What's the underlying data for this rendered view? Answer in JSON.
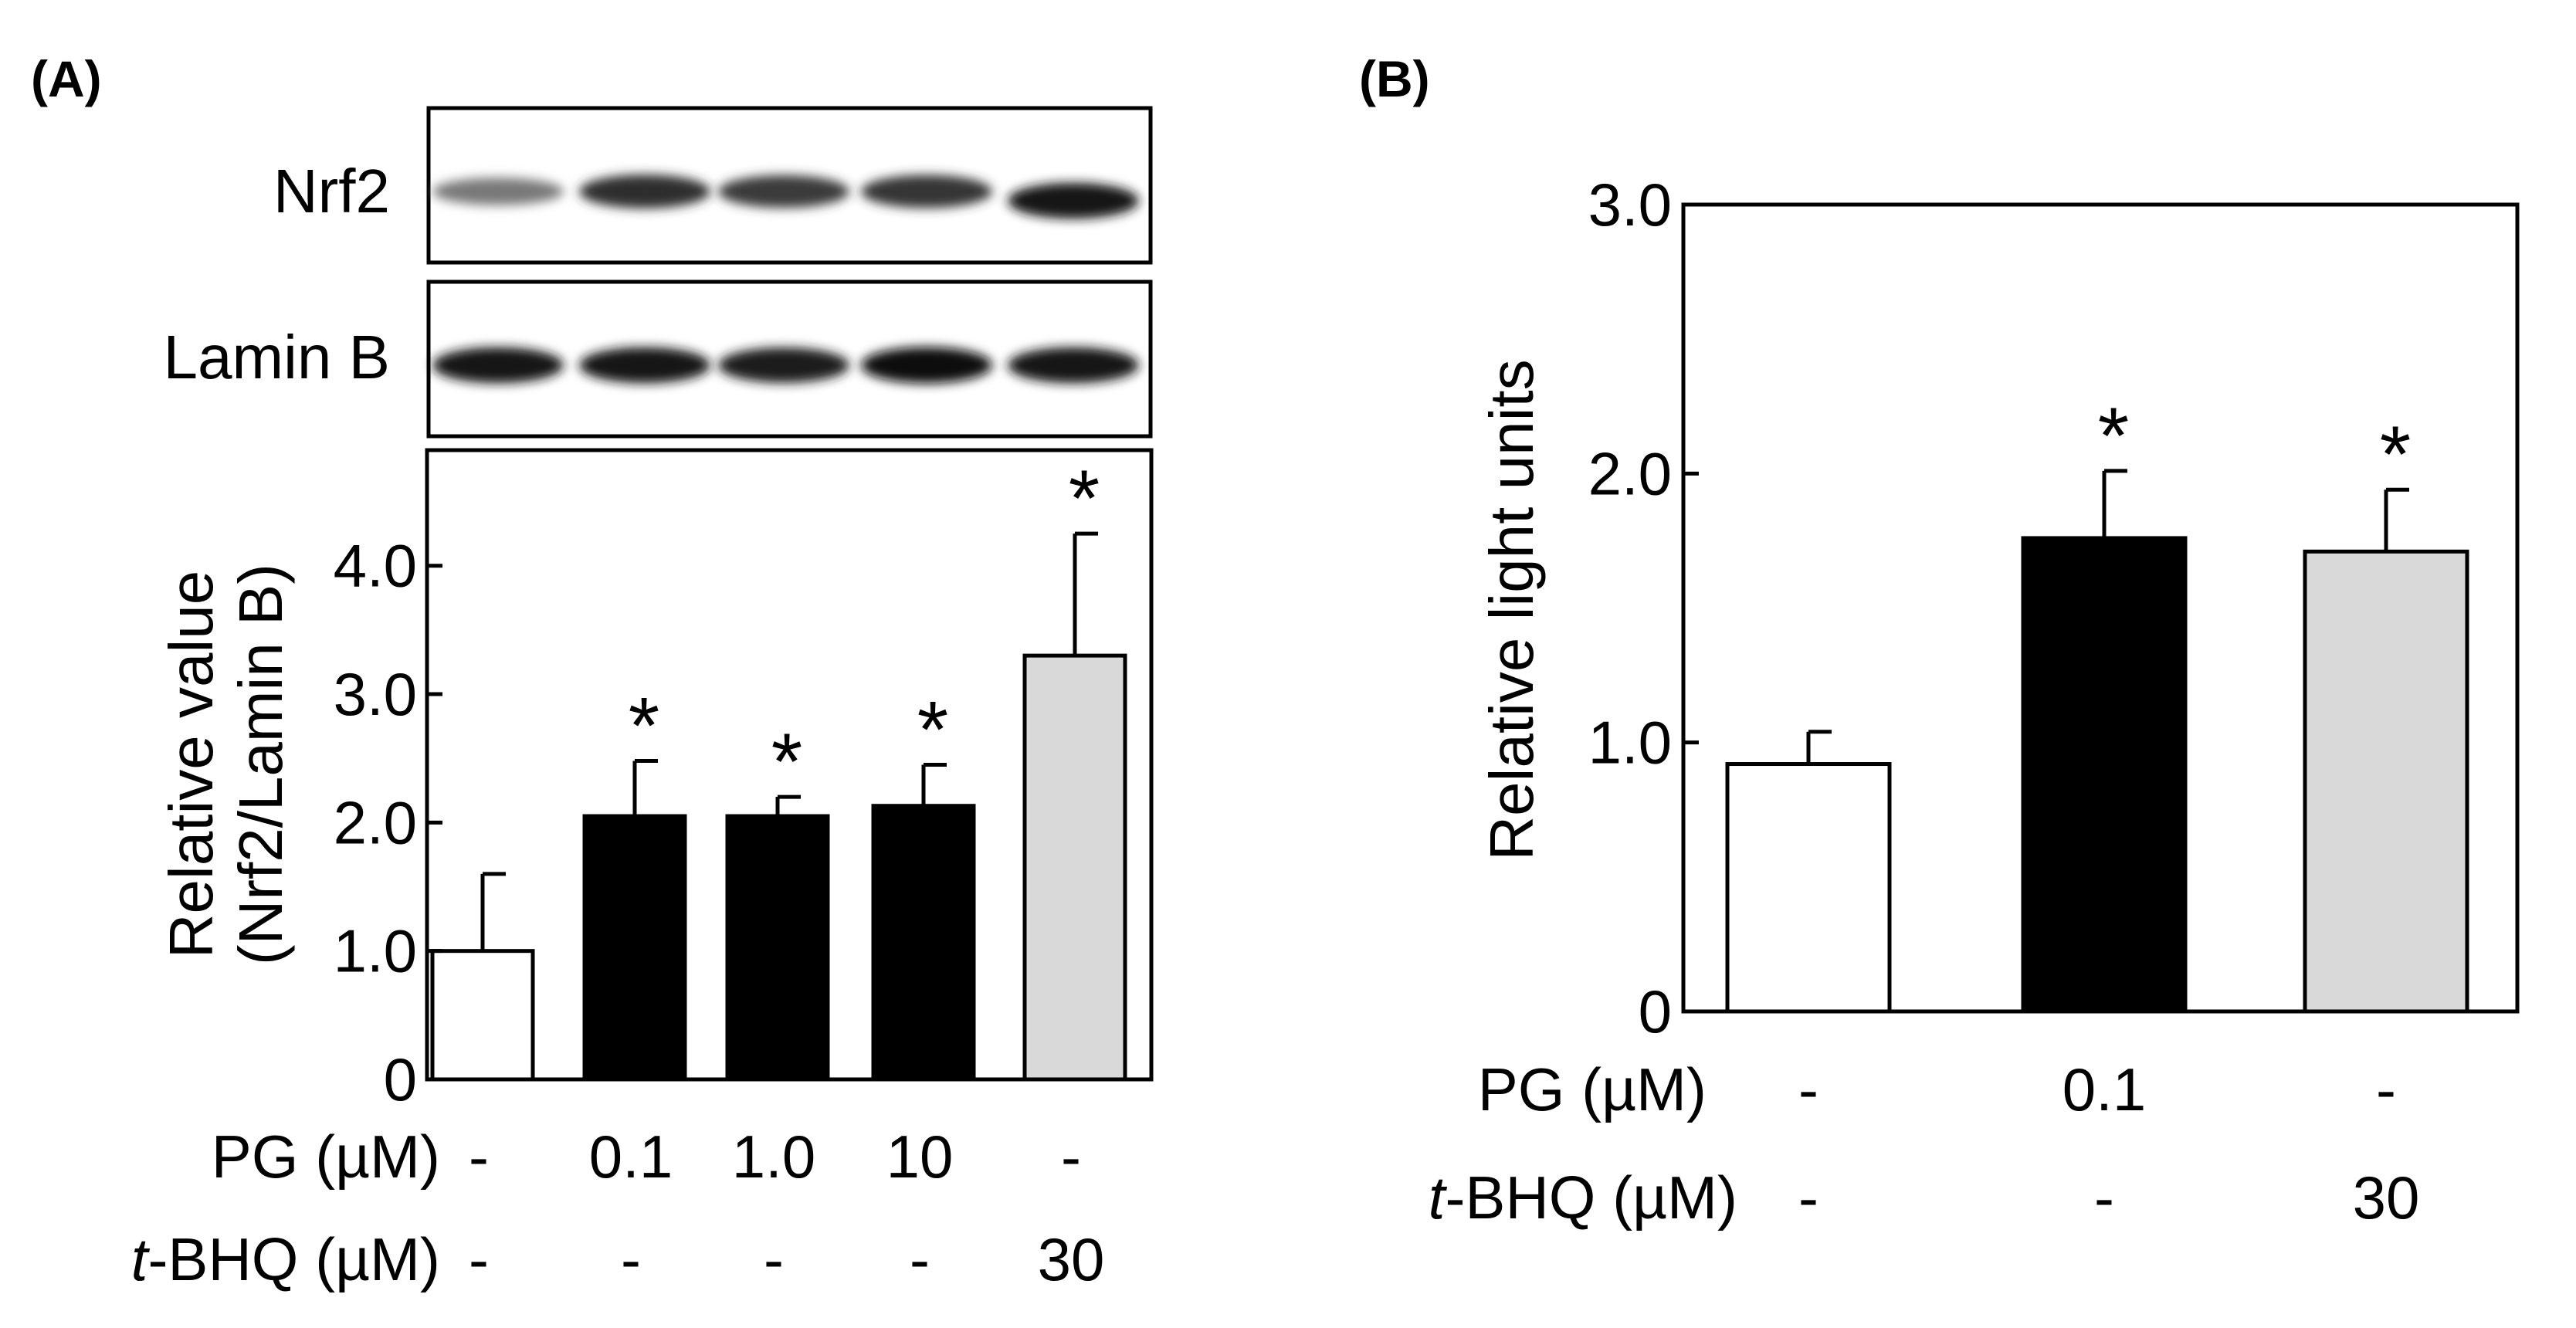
{
  "panels": {
    "a_label": "(A)",
    "b_label": "(B)"
  },
  "blot": {
    "rows": [
      {
        "name": "Nrf2",
        "intensity": [
          0.55,
          0.85,
          0.8,
          0.82,
          0.95
        ]
      },
      {
        "name": "Lamin B",
        "intensity": [
          0.95,
          0.95,
          0.92,
          0.97,
          0.95
        ]
      }
    ]
  },
  "chart_data": [
    {
      "type": "bar",
      "panel": "(A)",
      "ylabel_line1": "Relative value",
      "ylabel_line2": "(Nrf2/Lamin B)",
      "ylim": [
        0,
        4.9
      ],
      "yticks": [
        0,
        1.0,
        2.0,
        3.0,
        4.0
      ],
      "ytick_labels": [
        "0",
        "1.0",
        "2.0",
        "3.0",
        "4.0"
      ],
      "values": [
        1.0,
        2.05,
        2.05,
        2.13,
        3.3
      ],
      "errors": [
        0.6,
        0.43,
        0.15,
        0.32,
        0.95
      ],
      "significant": [
        false,
        true,
        true,
        true,
        true
      ],
      "significance_mark": "*",
      "fills": [
        "#ffffff",
        "#000000",
        "#000000",
        "#000000",
        "#d9d9d9"
      ],
      "conditions": [
        {
          "label": "PG (µM)",
          "values": [
            "-",
            "0.1",
            "1.0",
            "10",
            "-"
          ]
        },
        {
          "label_prefix": "t",
          "label_rest": "-BHQ (µM)",
          "values": [
            "-",
            "-",
            "-",
            "-",
            "30"
          ]
        }
      ]
    },
    {
      "type": "bar",
      "panel": "(B)",
      "ylabel": "Relative light units",
      "ylim": [
        0,
        3.0
      ],
      "yticks": [
        0,
        1.0,
        2.0,
        3.0
      ],
      "ytick_labels": [
        "0",
        "1.0",
        "2.0",
        "3.0"
      ],
      "values": [
        0.92,
        1.76,
        1.71
      ],
      "errors": [
        0.12,
        0.25,
        0.23
      ],
      "significant": [
        false,
        true,
        true
      ],
      "significance_mark": "*",
      "fills": [
        "#ffffff",
        "#000000",
        "#d9d9d9"
      ],
      "conditions": [
        {
          "label": "PG (µM)",
          "values": [
            "-",
            "0.1",
            "-"
          ]
        },
        {
          "label_prefix": "t",
          "label_rest": "-BHQ (µM)",
          "values": [
            "-",
            "-",
            "30"
          ]
        }
      ]
    }
  ]
}
